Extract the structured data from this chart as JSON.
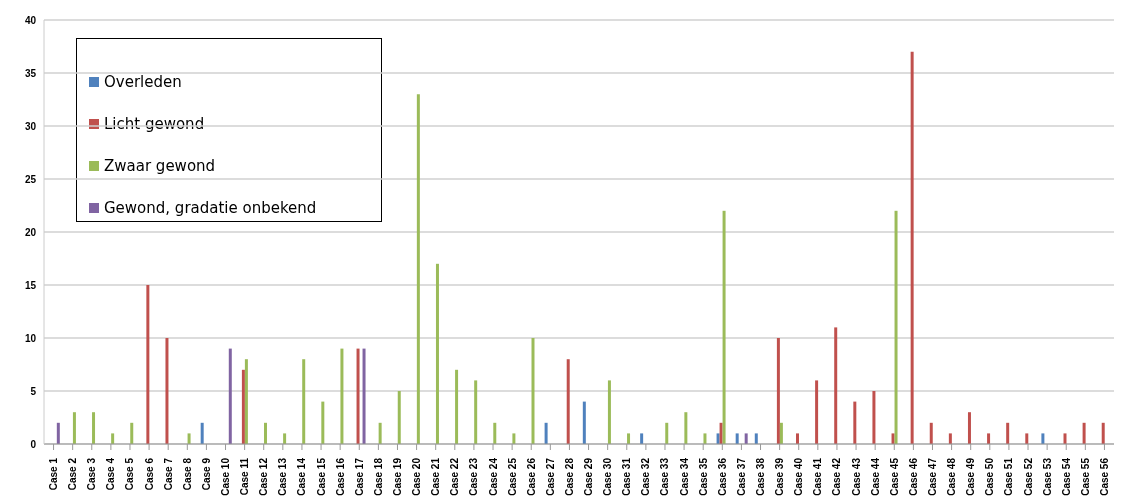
{
  "chart_data": {
    "type": "bar",
    "categories": [
      "Case 1",
      "Case 2",
      "Case 3",
      "Case 4",
      "Case 5",
      "Case 6",
      "Case 7",
      "Case 8",
      "Case 9",
      "Case 10",
      "Case 11",
      "Case 12",
      "Case 13",
      "Case 14",
      "Case 15",
      "Case 16",
      "Case 17",
      "Case 18",
      "Case 19",
      "Case 20",
      "Case 21",
      "Case 22",
      "Case 23",
      "Case 24",
      "Case 25",
      "Case 26",
      "Case 27",
      "Case 28",
      "Case 29",
      "Case 30",
      "Case 31",
      "Case 32",
      "Case 33",
      "Case 34",
      "Case 35",
      "Case 36",
      "Case 37",
      "Case 38",
      "Case 39",
      "Case 40",
      "Case 41",
      "Case 42",
      "Case 43",
      "Case 44",
      "Case 45",
      "Case 46",
      "Case 47",
      "Case 48",
      "Case 49",
      "Case 50",
      "Case 51",
      "Case 52",
      "Case 53",
      "Case 54",
      "Case 55",
      "Case 56"
    ],
    "series": [
      {
        "name": "Overleden",
        "color": "#4f81bd",
        "values": [
          null,
          null,
          null,
          null,
          null,
          null,
          null,
          null,
          2,
          null,
          null,
          null,
          null,
          null,
          null,
          null,
          null,
          null,
          null,
          null,
          null,
          null,
          null,
          null,
          null,
          null,
          2,
          null,
          4,
          null,
          null,
          1,
          null,
          null,
          null,
          1,
          1,
          1,
          null,
          null,
          null,
          null,
          null,
          null,
          null,
          null,
          null,
          null,
          null,
          null,
          null,
          null,
          1,
          null,
          null,
          null
        ]
      },
      {
        "name": "Licht gewond",
        "color": "#c0504d",
        "values": [
          null,
          null,
          null,
          null,
          null,
          15,
          10,
          null,
          null,
          null,
          7,
          null,
          null,
          null,
          null,
          null,
          9,
          null,
          null,
          null,
          null,
          null,
          null,
          null,
          null,
          null,
          null,
          8,
          null,
          null,
          null,
          null,
          null,
          null,
          null,
          2,
          null,
          null,
          10,
          1,
          6,
          11,
          4,
          5,
          1,
          37,
          2,
          1,
          3,
          1,
          2,
          1,
          null,
          1,
          2,
          2
        ]
      },
      {
        "name": "Zwaar gewond",
        "color": "#9bbb59",
        "values": [
          null,
          3,
          3,
          1,
          2,
          null,
          null,
          1,
          null,
          null,
          8,
          2,
          1,
          8,
          4,
          9,
          null,
          2,
          5,
          33,
          17,
          7,
          6,
          2,
          1,
          10,
          null,
          null,
          null,
          6,
          1,
          null,
          2,
          3,
          1,
          22,
          null,
          null,
          2,
          null,
          null,
          null,
          null,
          null,
          22,
          null,
          null,
          null,
          null,
          null,
          null,
          null,
          null,
          null,
          null,
          null
        ]
      },
      {
        "name": "Gewond, gradatie onbekend",
        "color": "#8064a2",
        "values": [
          2,
          null,
          null,
          null,
          null,
          null,
          null,
          null,
          null,
          9,
          null,
          null,
          null,
          null,
          null,
          null,
          9,
          null,
          null,
          null,
          null,
          null,
          null,
          null,
          null,
          null,
          null,
          null,
          null,
          null,
          null,
          null,
          null,
          null,
          null,
          null,
          1,
          null,
          null,
          null,
          null,
          null,
          null,
          null,
          null,
          null,
          null,
          null,
          null,
          null,
          null,
          null,
          null,
          null,
          null,
          null
        ]
      }
    ],
    "ylim": [
      0,
      40
    ],
    "yticks": [
      0,
      5,
      10,
      15,
      20,
      25,
      30,
      35,
      40
    ],
    "grid": "y",
    "legend": "top left"
  }
}
